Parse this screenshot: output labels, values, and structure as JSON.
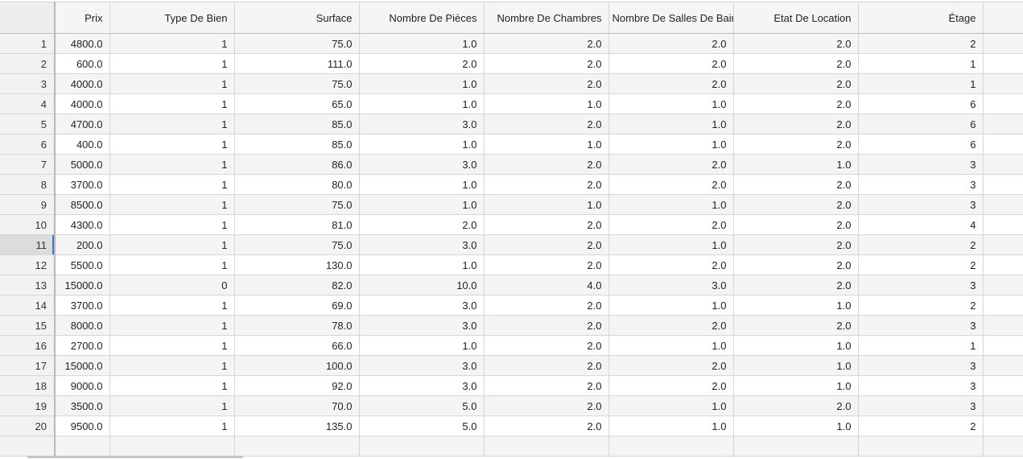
{
  "columns": [
    "Prix",
    "Type De Bien",
    "Surface",
    "Nombre De Pièces",
    "Nombre De Chambres",
    "Nombre De Salles De Bain",
    "Etat De Location",
    "Étage"
  ],
  "active_row": 11,
  "rows": [
    {
      "n": "1",
      "cells": [
        "4800.0",
        "1",
        "75.0",
        "1.0",
        "2.0",
        "2.0",
        "2.0",
        "2"
      ]
    },
    {
      "n": "2",
      "cells": [
        "600.0",
        "1",
        "111.0",
        "2.0",
        "2.0",
        "2.0",
        "2.0",
        "1"
      ]
    },
    {
      "n": "3",
      "cells": [
        "4000.0",
        "1",
        "75.0",
        "1.0",
        "2.0",
        "2.0",
        "2.0",
        "1"
      ]
    },
    {
      "n": "4",
      "cells": [
        "4000.0",
        "1",
        "65.0",
        "1.0",
        "1.0",
        "1.0",
        "2.0",
        "6"
      ]
    },
    {
      "n": "5",
      "cells": [
        "4700.0",
        "1",
        "85.0",
        "3.0",
        "2.0",
        "1.0",
        "2.0",
        "6"
      ]
    },
    {
      "n": "6",
      "cells": [
        "400.0",
        "1",
        "85.0",
        "1.0",
        "1.0",
        "1.0",
        "2.0",
        "6"
      ]
    },
    {
      "n": "7",
      "cells": [
        "5000.0",
        "1",
        "86.0",
        "3.0",
        "2.0",
        "2.0",
        "1.0",
        "3"
      ]
    },
    {
      "n": "8",
      "cells": [
        "3700.0",
        "1",
        "80.0",
        "1.0",
        "2.0",
        "2.0",
        "2.0",
        "3"
      ]
    },
    {
      "n": "9",
      "cells": [
        "8500.0",
        "1",
        "75.0",
        "1.0",
        "1.0",
        "1.0",
        "2.0",
        "3"
      ]
    },
    {
      "n": "10",
      "cells": [
        "4300.0",
        "1",
        "81.0",
        "2.0",
        "2.0",
        "2.0",
        "2.0",
        "4"
      ]
    },
    {
      "n": "11",
      "cells": [
        "200.0",
        "1",
        "75.0",
        "3.0",
        "2.0",
        "1.0",
        "2.0",
        "2"
      ]
    },
    {
      "n": "12",
      "cells": [
        "5500.0",
        "1",
        "130.0",
        "1.0",
        "2.0",
        "2.0",
        "2.0",
        "2"
      ]
    },
    {
      "n": "13",
      "cells": [
        "15000.0",
        "0",
        "82.0",
        "10.0",
        "4.0",
        "3.0",
        "2.0",
        "3"
      ]
    },
    {
      "n": "14",
      "cells": [
        "3700.0",
        "1",
        "69.0",
        "3.0",
        "2.0",
        "1.0",
        "1.0",
        "2"
      ]
    },
    {
      "n": "15",
      "cells": [
        "8000.0",
        "1",
        "78.0",
        "3.0",
        "2.0",
        "2.0",
        "2.0",
        "3"
      ]
    },
    {
      "n": "16",
      "cells": [
        "2700.0",
        "1",
        "66.0",
        "1.0",
        "2.0",
        "1.0",
        "1.0",
        "1"
      ]
    },
    {
      "n": "17",
      "cells": [
        "15000.0",
        "1",
        "100.0",
        "3.0",
        "2.0",
        "2.0",
        "1.0",
        "3"
      ]
    },
    {
      "n": "18",
      "cells": [
        "9000.0",
        "1",
        "92.0",
        "3.0",
        "2.0",
        "2.0",
        "1.0",
        "3"
      ]
    },
    {
      "n": "19",
      "cells": [
        "3500.0",
        "1",
        "70.0",
        "5.0",
        "2.0",
        "1.0",
        "2.0",
        "3"
      ]
    },
    {
      "n": "20",
      "cells": [
        "9500.0",
        "1",
        "135.0",
        "5.0",
        "2.0",
        "1.0",
        "1.0",
        "2"
      ]
    }
  ]
}
